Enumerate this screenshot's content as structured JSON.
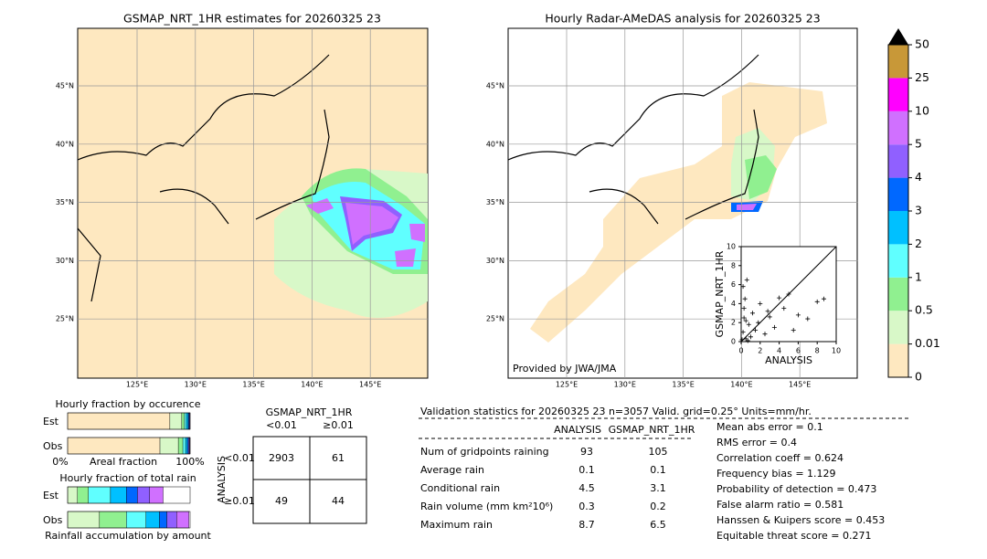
{
  "maps": [
    {
      "title": "GSMAP_NRT_1HR estimates for 20260325 23"
    },
    {
      "title": "Hourly Radar-AMeDAS analysis for 20260325 23"
    }
  ],
  "lat_labels": [
    "45°N",
    "40°N",
    "35°N",
    "30°N",
    "25°N"
  ],
  "lon_labels": [
    "125°E",
    "130°E",
    "135°E",
    "140°E",
    "145°E"
  ],
  "credit": "Provided by JWA/JMA",
  "colorbar": {
    "levels": [
      0,
      0.01,
      0.5,
      1,
      2,
      3,
      4,
      5,
      10,
      25,
      50
    ],
    "colors": [
      "#fee8c0",
      "#d8f8c8",
      "#90f090",
      "#60ffff",
      "#00c0ff",
      "#0068ff",
      "#9060ff",
      "#d070ff",
      "#ff00ff",
      "#c89838"
    ]
  },
  "scatter": {
    "xlabel": "ANALYSIS",
    "ylabel": "GSMAP_NRT_1HR",
    "xlim": [
      0,
      10
    ],
    "ylim": [
      0,
      10
    ],
    "xticks": [
      0,
      2,
      4,
      6,
      8,
      10
    ],
    "yticks": [
      0,
      2,
      4,
      6,
      8,
      10
    ],
    "x": [
      0.1,
      0.2,
      0.3,
      0.5,
      0.4,
      0.6,
      0.8,
      1.0,
      1.2,
      0.2,
      0.5,
      1.5,
      2.0,
      2.5,
      3.0,
      3.5,
      4.0,
      4.5,
      5.0,
      6.0,
      7.0,
      8.0,
      8.7,
      1.8,
      0.3,
      0.7,
      2.8,
      5.5
    ],
    "y": [
      0.2,
      1.0,
      2.5,
      0.3,
      4.5,
      6.5,
      1.8,
      0.5,
      3.0,
      5.8,
      2.2,
      1.2,
      4.0,
      0.8,
      2.6,
      1.5,
      4.6,
      3.5,
      5.0,
      2.8,
      2.4,
      4.2,
      4.5,
      2.0,
      3.5,
      0.1,
      3.2,
      1.2
    ]
  },
  "occurrence": {
    "title": "Hourly fraction by occurence",
    "rows": [
      "Est",
      "Obs"
    ],
    "axis_left": "0%",
    "axis_mid": "Areal fraction",
    "axis_right": "100%",
    "colors": [
      "#fee8c0",
      "#d8f8c8",
      "#90f090",
      "#60ffff",
      "#00c0ff",
      "#0068ff",
      "#9060ff",
      "#d070ff"
    ],
    "est": [
      83.5,
      9.7,
      2.2,
      1.5,
      1.5,
      0.7,
      0.5,
      0.4
    ],
    "obs": [
      75.4,
      15,
      3.7,
      2.2,
      1.5,
      1,
      0.6,
      0.6
    ]
  },
  "total_rain": {
    "title": "Hourly fraction of total rain",
    "rows": [
      "Est",
      "Obs"
    ],
    "footer": "Rainfall accumulation by amount",
    "est": [
      0,
      8,
      9,
      18,
      13,
      9,
      10,
      11
    ],
    "obs": [
      0,
      26,
      22,
      16,
      11,
      6,
      8,
      10
    ]
  },
  "contingency": {
    "title": "GSMAP_NRT_1HR",
    "col_labels": [
      "<0.01",
      "≥0.01"
    ],
    "row_title": "ANALYSIS",
    "row_labels": [
      "<0.01",
      "≥0.01"
    ],
    "cells": [
      [
        2903,
        61
      ],
      [
        49,
        44
      ]
    ]
  },
  "validation": {
    "header": "Validation statistics for 20260325 23  n=3057 Valid. grid=0.25° Units=mm/hr.",
    "columns": [
      "ANALYSIS",
      "GSMAP_NRT_1HR"
    ],
    "rows": [
      {
        "label": "Num of gridpoints raining",
        "values": [
          93,
          105
        ]
      },
      {
        "label": "Average rain",
        "values": [
          0.1,
          0.1
        ]
      },
      {
        "label": "Conditional rain",
        "values": [
          4.5,
          3.1
        ]
      },
      {
        "label": "Rain volume (mm km²10⁶)",
        "values": [
          0.3,
          0.2
        ]
      },
      {
        "label": "Maximum rain",
        "values": [
          8.7,
          6.5
        ]
      }
    ],
    "scores": [
      "Mean abs error =    0.1",
      "RMS error =    0.4",
      "Correlation coeff =  0.624",
      "Frequency bias =  1.129",
      "Probability of detection =  0.473",
      "False alarm ratio =  0.581",
      "Hanssen & Kuipers score =  0.453",
      "Equitable threat score =  0.271"
    ]
  }
}
